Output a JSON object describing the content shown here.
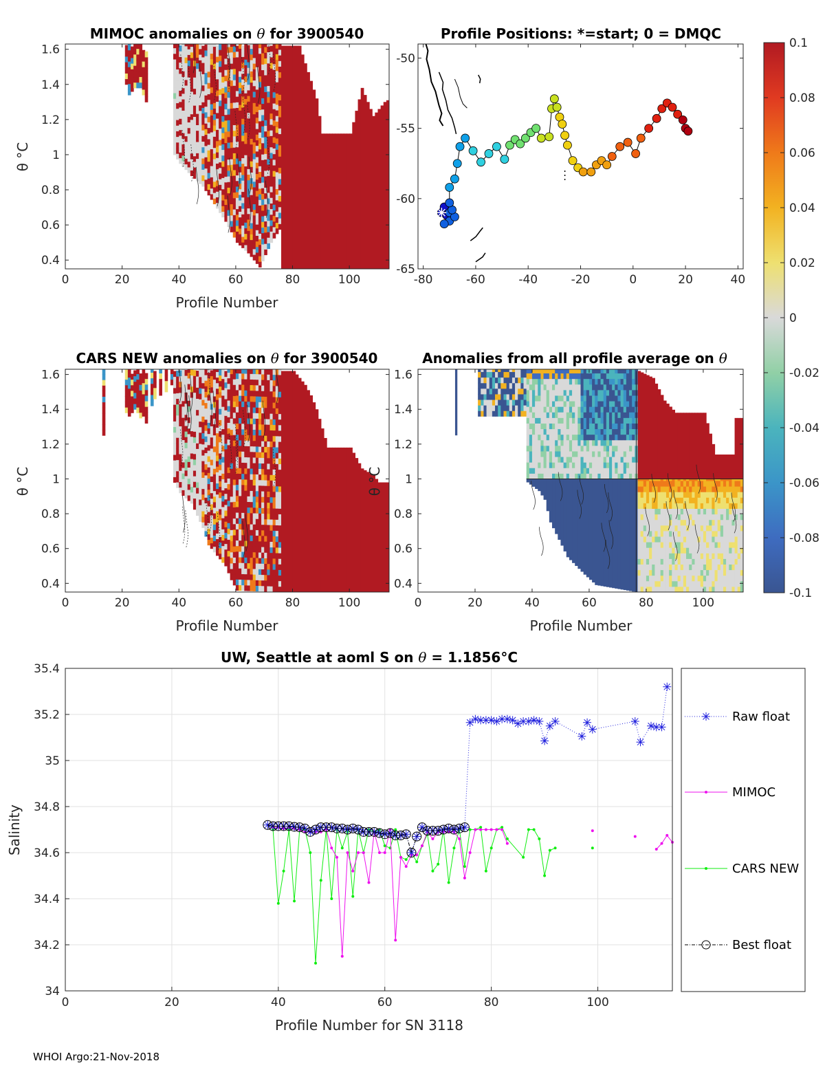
{
  "float_id": "3900540",
  "footer": "WHOI Argo:21-Nov-2018",
  "colors": {
    "raw": "#1f1fdd",
    "mimoc": "#ee10ee",
    "cars": "#10ee10",
    "best": "#000000",
    "dark_red": "#b11a22",
    "dark_blue": "#3a5591",
    "neutral": "#d9d9d9"
  },
  "chart_data": [
    {
      "id": "mimoc",
      "type": "heatmap",
      "title_pre": "MIMOC anomalies on ",
      "title_sym": "θ",
      "title_post": "  for 3900540",
      "xlabel": "Profile Number",
      "ylabel": "θ °C",
      "xlim": [
        0,
        114
      ],
      "ylim": [
        0.35,
        1.63
      ],
      "xticks": [
        "0",
        "20",
        "40",
        "60",
        "80",
        "100"
      ],
      "yticks": [
        "0.4",
        "0.6",
        "0.8",
        "1",
        "1.2",
        "1.4",
        "1.6"
      ],
      "fill_top_by_profile": [
        [
          38,
          1.62
        ],
        [
          55,
          1.62
        ],
        [
          76,
          1.62
        ],
        [
          82,
          1.62
        ],
        [
          88,
          1.32
        ],
        [
          90,
          1.12
        ],
        [
          100,
          1.12
        ],
        [
          104,
          1.38
        ],
        [
          108,
          1.22
        ],
        [
          110,
          1.26
        ],
        [
          112,
          1.3
        ],
        [
          114,
          1.32
        ]
      ],
      "note": "Red (positive) block for profiles 76-113; mixed noisy anomalies for profiles 38-76"
    },
    {
      "id": "positions",
      "type": "scatter",
      "title": "Profile Positions: *=start; 0 = DMQC",
      "xlim": [
        -82,
        42
      ],
      "ylim": [
        -65,
        -49
      ],
      "xticks": [
        "-80",
        "-60",
        "-40",
        "-20",
        "0",
        "20",
        "40"
      ],
      "yticks": [
        "-50",
        "-55",
        "-60",
        "-65"
      ],
      "start": [
        -73,
        -61
      ],
      "points": [
        [
          -73,
          -61
        ],
        [
          -72,
          -60.6
        ],
        [
          -71,
          -61.2
        ],
        [
          -70,
          -61.6
        ],
        [
          -72,
          -61.8
        ],
        [
          -70,
          -61
        ],
        [
          -68,
          -61.3
        ],
        [
          -69,
          -60.8
        ],
        [
          -70,
          -60.3
        ],
        [
          -70,
          -59.2
        ],
        [
          -68,
          -58.6
        ],
        [
          -67,
          -57.5
        ],
        [
          -66,
          -56.3
        ],
        [
          -64,
          -55.7
        ],
        [
          -61,
          -56.6
        ],
        [
          -58,
          -57.4
        ],
        [
          -55,
          -56.8
        ],
        [
          -52,
          -56.3
        ],
        [
          -49,
          -57.2
        ],
        [
          -47,
          -56.2
        ],
        [
          -45,
          -55.8
        ],
        [
          -43,
          -56.1
        ],
        [
          -41,
          -55.7
        ],
        [
          -39,
          -55.3
        ],
        [
          -37,
          -55
        ],
        [
          -35,
          -55.7
        ],
        [
          -32,
          -55.6
        ],
        [
          -31,
          -53.6
        ],
        [
          -30,
          -52.9
        ],
        [
          -29,
          -53.5
        ],
        [
          -28,
          -54.2
        ],
        [
          -27,
          -54.7
        ],
        [
          -26,
          -55.5
        ],
        [
          -25,
          -56.2
        ],
        [
          -23,
          -57.3
        ],
        [
          -21,
          -57.8
        ],
        [
          -19,
          -58.1
        ],
        [
          -16,
          -58.1
        ],
        [
          -14,
          -57.6
        ],
        [
          -12,
          -57.3
        ],
        [
          -10,
          -57.6
        ],
        [
          -8,
          -57
        ],
        [
          -5,
          -56.3
        ],
        [
          -2,
          -56
        ],
        [
          1,
          -56.8
        ],
        [
          3,
          -55.7
        ],
        [
          6,
          -55
        ],
        [
          9,
          -54.3
        ],
        [
          11,
          -53.6
        ],
        [
          13,
          -53.2
        ],
        [
          15,
          -53.5
        ],
        [
          17,
          -54
        ],
        [
          19,
          -54.4
        ],
        [
          20,
          -55
        ],
        [
          21,
          -55.2
        ]
      ],
      "coast": "black landmass outlines at left (South America / Antarctic Peninsula)"
    },
    {
      "id": "cars",
      "type": "heatmap",
      "title_pre": "CARS NEW anomalies on ",
      "title_sym": "θ",
      "title_post": " for 3900540",
      "xlabel": "Profile Number",
      "ylabel": "θ °C",
      "xlim": [
        0,
        114
      ],
      "ylim": [
        0.35,
        1.63
      ],
      "xticks": [
        "0",
        "20",
        "40",
        "60",
        "80",
        "100"
      ],
      "yticks": [
        "0.4",
        "0.6",
        "0.8",
        "1",
        "1.2",
        "1.4",
        "1.6"
      ],
      "fill_top_by_profile": [
        [
          76,
          1.62
        ],
        [
          80,
          1.62
        ],
        [
          82,
          1.58
        ],
        [
          84,
          1.54
        ],
        [
          86,
          1.48
        ],
        [
          88,
          1.4
        ],
        [
          92,
          1.18
        ],
        [
          100,
          1.18
        ],
        [
          104,
          1.06
        ],
        [
          108,
          1.02
        ],
        [
          110,
          0.98
        ],
        [
          114,
          0.98
        ]
      ]
    },
    {
      "id": "all_avg",
      "type": "heatmap",
      "title_pre": "Anomalies from all profile average on ",
      "title_sym": "θ",
      "title_post": "",
      "xlabel": "Profile Number",
      "ylabel": "θ °C",
      "xlim": [
        0,
        114
      ],
      "ylim": [
        0.35,
        1.63
      ],
      "xticks": [
        "0",
        "20",
        "40",
        "60",
        "80",
        "100"
      ],
      "yticks": [
        "0.4",
        "0.6",
        "0.8",
        "1",
        "1.2",
        "1.4",
        "1.6"
      ],
      "red_top_by_profile": [
        [
          77,
          1.62
        ],
        [
          82,
          1.58
        ],
        [
          86,
          1.45
        ],
        [
          90,
          1.38
        ],
        [
          100,
          1.38
        ],
        [
          104,
          1.14
        ],
        [
          110,
          1.14
        ],
        [
          111,
          1.35
        ],
        [
          114,
          1.35
        ]
      ],
      "blue_bottom_by_profile": [
        [
          38,
          0.98
        ],
        [
          42,
          0.93
        ],
        [
          44,
          0.88
        ],
        [
          46,
          0.75
        ],
        [
          52,
          0.55
        ],
        [
          58,
          0.45
        ],
        [
          62,
          0.39
        ],
        [
          76,
          0.35
        ]
      ]
    },
    {
      "id": "colorbar",
      "type": "heatmap",
      "range": [
        -0.1,
        0.1
      ],
      "ticks": [
        "0.1",
        "0.08",
        "0.06",
        "0.04",
        "0.02",
        "0",
        "-0.02",
        "-0.04",
        "-0.06",
        "-0.08",
        "-0.1"
      ],
      "stops": [
        "#3a5591",
        "#3e6cc0",
        "#3b95c8",
        "#4bb4bd",
        "#91d0a6",
        "#d9d9d9",
        "#eee070",
        "#f2b221",
        "#ef7a1a",
        "#e03a21",
        "#b11a22"
      ]
    },
    {
      "id": "salinity",
      "type": "line",
      "title_pre": "UW, Seattle at aoml S on ",
      "title_sym": "θ",
      "title_post": " = 1.1856°C",
      "xlabel": "Profile Number for SN 3118",
      "ylabel": "Salinity",
      "xlim": [
        0,
        114
      ],
      "ylim": [
        34,
        35.4
      ],
      "xticks": [
        "0",
        "20",
        "40",
        "60",
        "80",
        "100"
      ],
      "yticks": [
        "35.4",
        "35.2",
        "35",
        "34.8",
        "34.6",
        "34.4",
        "34.2",
        "34"
      ],
      "series": [
        {
          "name": "Raw float",
          "style": "dotted-star",
          "x": [
            38,
            39,
            40,
            41,
            42,
            43,
            44,
            45,
            46,
            47,
            48,
            49,
            50,
            51,
            52,
            53,
            54,
            55,
            56,
            57,
            58,
            59,
            60,
            61,
            62,
            63,
            64,
            65,
            66,
            67,
            68,
            69,
            70,
            71,
            72,
            73,
            74,
            75,
            76,
            77,
            78,
            79,
            80,
            81,
            82,
            83,
            84,
            85,
            86,
            87,
            88,
            89,
            90,
            91,
            92,
            97,
            98,
            99,
            107,
            108,
            110,
            111,
            112,
            113
          ],
          "y": [
            34.72,
            34.715,
            34.715,
            34.715,
            34.715,
            34.712,
            34.71,
            34.705,
            34.69,
            34.7,
            34.71,
            34.71,
            34.71,
            34.705,
            34.705,
            34.7,
            34.705,
            34.7,
            34.69,
            34.69,
            34.69,
            34.685,
            34.68,
            34.685,
            34.675,
            34.675,
            34.68,
            34.6,
            34.67,
            34.71,
            34.695,
            34.695,
            34.695,
            34.7,
            34.705,
            34.7,
            34.705,
            34.71,
            35.165,
            35.18,
            35.175,
            35.175,
            35.175,
            35.17,
            35.18,
            35.18,
            35.175,
            35.16,
            35.17,
            35.17,
            35.175,
            35.17,
            35.085,
            35.15,
            35.17,
            35.105,
            35.165,
            35.135,
            35.17,
            35.08,
            35.15,
            35.145,
            35.145,
            35.32
          ]
        },
        {
          "name": "MIMOC",
          "style": "solid-dot",
          "x": [
            39,
            40,
            41,
            42,
            43,
            44,
            45,
            46,
            47,
            48,
            49,
            50,
            51,
            52,
            53,
            54,
            55,
            56,
            57,
            58,
            59,
            60,
            61,
            62,
            63,
            64,
            65,
            66,
            67,
            68,
            69,
            70,
            71,
            72,
            73,
            74,
            75,
            76,
            77,
            78,
            79,
            80,
            81,
            82,
            83,
            99,
            107,
            111,
            112,
            113,
            114
          ],
          "y": [
            34.71,
            34.71,
            34.705,
            34.71,
            34.705,
            34.7,
            34.69,
            34.69,
            34.69,
            34.69,
            34.7,
            34.62,
            34.58,
            34.15,
            34.6,
            34.52,
            34.6,
            34.6,
            34.47,
            34.69,
            34.6,
            34.6,
            34.7,
            34.22,
            34.58,
            34.54,
            34.59,
            34.59,
            34.63,
            34.69,
            34.66,
            34.69,
            34.69,
            34.69,
            34.69,
            34.66,
            34.49,
            34.6,
            34.7,
            34.7,
            34.7,
            34.7,
            34.7,
            34.7,
            34.64,
            34.695,
            34.67,
            34.615,
            34.64,
            34.675,
            34.645
          ]
        },
        {
          "name": "CARS NEW",
          "style": "solid-dot",
          "x": [
            39,
            40,
            41,
            42,
            43,
            44,
            45,
            46,
            47,
            48,
            49,
            50,
            51,
            52,
            53,
            54,
            55,
            56,
            57,
            58,
            59,
            60,
            61,
            62,
            63,
            64,
            65,
            66,
            67,
            68,
            69,
            70,
            71,
            72,
            73,
            74,
            75,
            76,
            77,
            78,
            79,
            80,
            81,
            82,
            83,
            86,
            87,
            88,
            89,
            90,
            91,
            92,
            99
          ],
          "y": [
            34.7,
            34.38,
            34.52,
            34.7,
            34.39,
            34.7,
            34.7,
            34.6,
            34.12,
            34.48,
            34.7,
            34.4,
            34.7,
            34.62,
            34.69,
            34.41,
            34.7,
            34.6,
            34.7,
            34.69,
            34.7,
            34.63,
            34.62,
            34.7,
            34.58,
            34.57,
            34.6,
            34.56,
            34.63,
            34.68,
            34.52,
            34.55,
            34.7,
            34.47,
            34.62,
            34.7,
            34.54,
            34.7,
            34.7,
            34.71,
            34.52,
            34.62,
            34.7,
            34.71,
            34.66,
            34.58,
            34.7,
            34.7,
            34.66,
            34.5,
            34.61,
            34.62,
            34.62
          ]
        },
        {
          "name": "Best float",
          "style": "dashdot-circle",
          "x": [
            38,
            39,
            40,
            41,
            42,
            43,
            44,
            45,
            46,
            47,
            48,
            49,
            50,
            51,
            52,
            53,
            54,
            55,
            56,
            57,
            58,
            59,
            60,
            61,
            62,
            63,
            64,
            65,
            66,
            67,
            68,
            69,
            70,
            71,
            72,
            73,
            74,
            75
          ],
          "y": [
            34.72,
            34.715,
            34.715,
            34.715,
            34.715,
            34.712,
            34.71,
            34.705,
            34.69,
            34.7,
            34.71,
            34.71,
            34.71,
            34.705,
            34.705,
            34.7,
            34.705,
            34.7,
            34.69,
            34.69,
            34.69,
            34.685,
            34.68,
            34.685,
            34.675,
            34.675,
            34.68,
            34.6,
            34.67,
            34.71,
            34.695,
            34.695,
            34.695,
            34.7,
            34.705,
            34.7,
            34.705,
            34.71
          ]
        }
      ],
      "legend": [
        "Raw float",
        "MIMOC",
        "CARS NEW",
        "Best float"
      ]
    }
  ]
}
